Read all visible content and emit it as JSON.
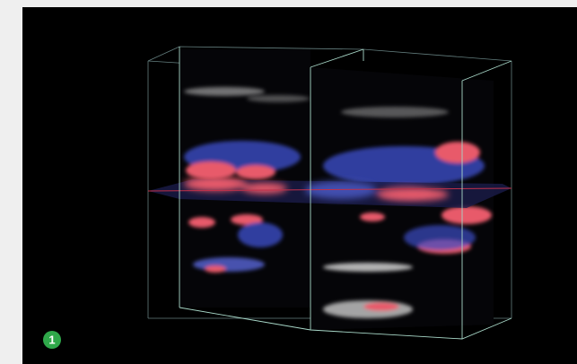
{
  "badge": {
    "label": "1"
  }
}
